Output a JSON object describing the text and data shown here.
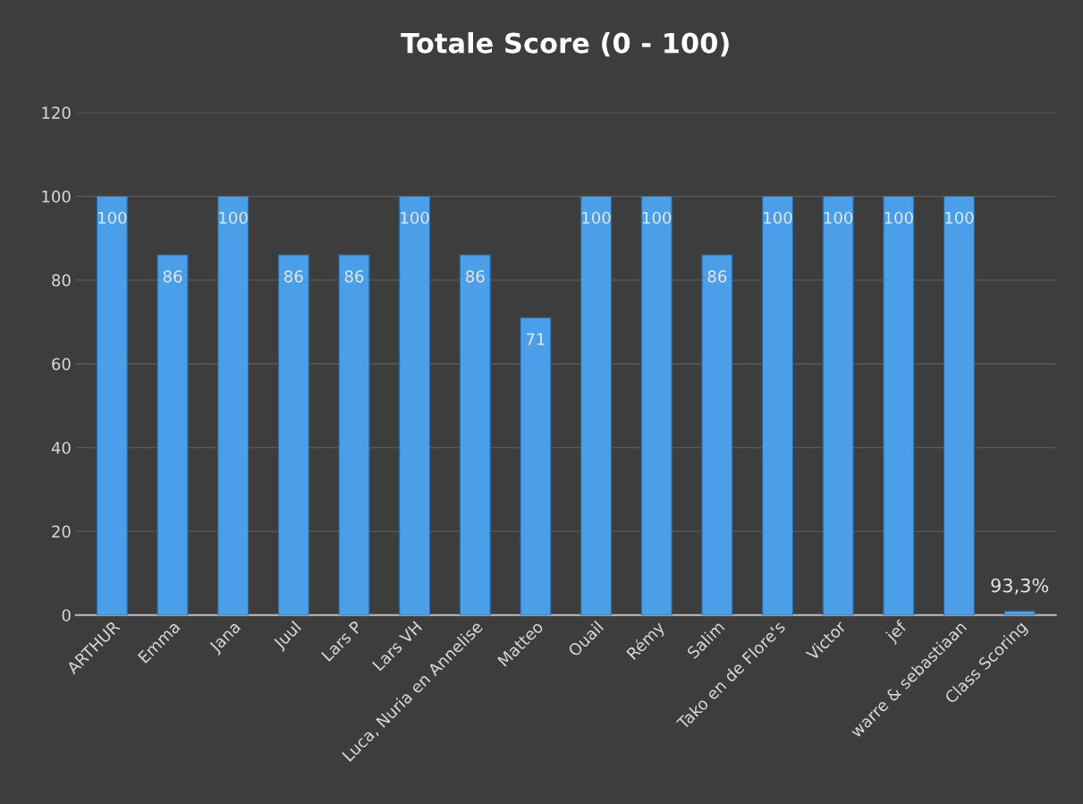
{
  "chart_data": {
    "type": "bar",
    "title": "Totale Score (0 - 100)",
    "categories": [
      "ARTHUR",
      "Emma",
      "Jana",
      "Juul",
      "Lars P",
      "Lars VH",
      "Luca, Nuria en Annelise",
      "Matteo",
      "Ouail",
      "Rémy",
      "Salim",
      "Tako en de Flore's",
      "Victor",
      "jef",
      "warre & sebastiaan",
      "Class Scoring"
    ],
    "values": [
      100,
      86,
      100,
      86,
      86,
      100,
      86,
      71,
      100,
      100,
      86,
      100,
      100,
      100,
      100,
      0.933
    ],
    "value_labels": [
      "100",
      "86",
      "100",
      "86",
      "86",
      "100",
      "86",
      "71",
      "100",
      "100",
      "86",
      "100",
      "100",
      "100",
      "100",
      "93,3%"
    ],
    "color": "#4a9fe8",
    "ylim": [
      0,
      120
    ],
    "yticks": [
      0,
      20,
      40,
      60,
      80,
      100,
      120
    ],
    "grid": "y"
  }
}
